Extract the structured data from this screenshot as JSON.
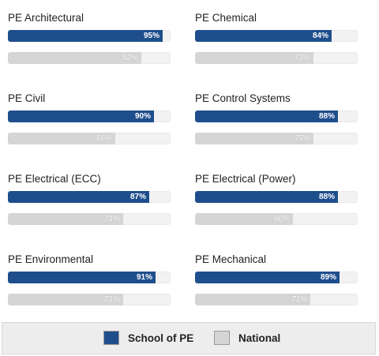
{
  "colors": {
    "school": "#1f4e8c",
    "national": "#d5d5d5"
  },
  "exams": [
    {
      "title": "PE Architectural",
      "school": 95,
      "national": 82,
      "school_label": "95%",
      "national_label": "82%"
    },
    {
      "title": "PE Chemical",
      "school": 84,
      "national": 73,
      "school_label": "84%",
      "national_label": "73%"
    },
    {
      "title": "PE Civil",
      "school": 90,
      "national": 66,
      "school_label": "90%",
      "national_label": "66%"
    },
    {
      "title": "PE Control Systems",
      "school": 88,
      "national": 73,
      "school_label": "88%",
      "national_label": "73%"
    },
    {
      "title": "PE Electrical (ECC)",
      "school": 87,
      "national": 71,
      "school_label": "87%",
      "national_label": "71%"
    },
    {
      "title": "PE Electrical (Power)",
      "school": 88,
      "national": 60,
      "school_label": "88%",
      "national_label": "60%"
    },
    {
      "title": "PE Environmental",
      "school": 91,
      "national": 71,
      "school_label": "91%",
      "national_label": "71%"
    },
    {
      "title": "PE Mechanical",
      "school": 89,
      "national": 71,
      "school_label": "89%",
      "national_label": "71%"
    }
  ],
  "legend": {
    "school_label": "School of PE",
    "national_label": "National"
  }
}
